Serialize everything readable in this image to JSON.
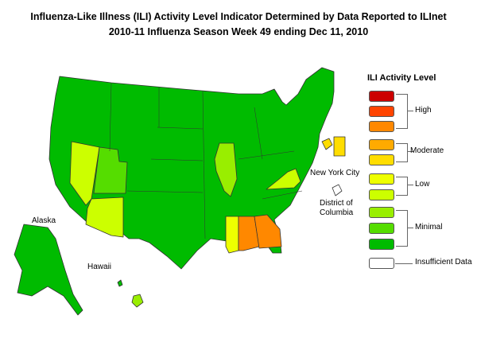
{
  "title": {
    "line1": "Influenza-Like Illness (ILI) Activity Level Indicator Determined by Data Reported to ILInet",
    "line2": "2010-11  Influenza Season Week  49 ending Dec 11, 2010"
  },
  "map_labels": {
    "alaska": "Alaska",
    "hawaii": "Hawaii",
    "nyc": "New York City",
    "dc_line1": "District of",
    "dc_line2": "Columbia"
  },
  "legend": {
    "title": "ILI Activity Level",
    "levels": [
      {
        "level": 10,
        "color": "#cc0000"
      },
      {
        "level": 9,
        "color": "#ff4400"
      },
      {
        "level": 8,
        "color": "#ff8800"
      },
      {
        "level": 7,
        "color": "#ffaa00"
      },
      {
        "level": 6,
        "color": "#ffdd00"
      },
      {
        "level": 5,
        "color": "#eeff00"
      },
      {
        "level": 4,
        "color": "#ccff00"
      },
      {
        "level": 3,
        "color": "#99ee00"
      },
      {
        "level": 2,
        "color": "#55dd00"
      },
      {
        "level": 1,
        "color": "#00bb00"
      }
    ],
    "groups": {
      "high": "High",
      "moderate": "Moderate",
      "low": "Low",
      "minimal": "Minimal",
      "insufficient": "Insufficient Data"
    }
  },
  "colors": {
    "minimal_dark": "#00bb00",
    "minimal_light": "#55dd00",
    "minimal_lighter": "#99ee00",
    "low": "#ccff00",
    "moderate": "#ffdd00",
    "high": "#ff8800",
    "insufficient": "#ffffff",
    "border": "#333333"
  },
  "states": [
    {
      "name": "Nevada",
      "level": 4
    },
    {
      "name": "Arizona",
      "level": 4
    },
    {
      "name": "Utah",
      "level": 2
    },
    {
      "name": "Illinois",
      "level": 3
    },
    {
      "name": "Virginia",
      "level": 4
    },
    {
      "name": "Mississippi",
      "level": 5
    },
    {
      "name": "Alabama",
      "level": 8
    },
    {
      "name": "Georgia",
      "level": 8
    },
    {
      "name": "Connecticut",
      "level": 6
    },
    {
      "name": "Hawaii",
      "level": 3
    },
    {
      "name": "District of Columbia",
      "level": 0
    }
  ]
}
